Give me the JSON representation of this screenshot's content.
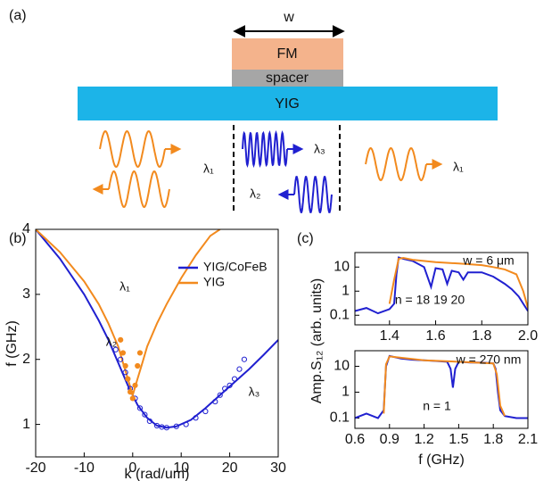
{
  "diagram": {
    "label": "(a)",
    "width_label": "w",
    "layers": [
      "FM",
      "spacer",
      "YIG"
    ],
    "wavelength_labels": [
      "λ₁",
      "λ₃",
      "λ₂",
      "λ₁"
    ]
  },
  "chart_data": [
    {
      "type": "line",
      "label": "(b)",
      "xlabel": "k (rad/um)",
      "ylabel": "f (GHz)",
      "xlim": [
        -20,
        30
      ],
      "ylim": [
        0.5,
        4
      ],
      "xticks": [
        -20,
        -10,
        0,
        10,
        20,
        30
      ],
      "yticks": [
        1,
        2,
        3,
        4
      ],
      "legend": "right",
      "annotations": [
        "λ₁",
        "λ₂",
        "λ₃"
      ],
      "series": [
        {
          "name": "YIG/CoFeB",
          "color": "#2020d0",
          "x": [
            -20,
            -15,
            -10,
            -7,
            -5,
            -3,
            -1,
            0,
            1,
            3,
            5,
            7,
            9,
            12,
            15,
            18,
            21,
            24,
            27,
            30
          ],
          "values": [
            4.0,
            3.55,
            3.0,
            2.6,
            2.3,
            1.95,
            1.6,
            1.45,
            1.3,
            1.1,
            0.98,
            0.95,
            0.97,
            1.07,
            1.25,
            1.45,
            1.65,
            1.85,
            2.07,
            2.3
          ]
        },
        {
          "name": "YIG",
          "color": "#f28a1e",
          "x": [
            -20,
            -15,
            -10,
            -7,
            -5,
            -3,
            -2,
            -1,
            0,
            1,
            2,
            3,
            5,
            7,
            10,
            13,
            16,
            18
          ],
          "values": [
            4.0,
            3.65,
            3.2,
            2.85,
            2.55,
            2.2,
            1.95,
            1.7,
            1.45,
            1.7,
            1.95,
            2.2,
            2.55,
            2.85,
            3.25,
            3.6,
            3.9,
            4.0
          ]
        },
        {
          "color": "#2020d0",
          "mode": "markers",
          "marker": "open",
          "x": [
            -3.5,
            -2.5,
            -1.5,
            -0.5,
            0.5,
            1.5,
            2.5,
            3.5,
            5,
            6,
            7,
            9,
            11,
            13,
            15,
            17,
            18,
            19,
            20,
            21,
            22,
            23
          ],
          "values": [
            2.15,
            2.0,
            1.8,
            1.55,
            1.4,
            1.25,
            1.15,
            1.05,
            0.98,
            0.96,
            0.95,
            0.97,
            1.0,
            1.1,
            1.2,
            1.35,
            1.45,
            1.55,
            1.6,
            1.7,
            1.85,
            2.0
          ]
        },
        {
          "color": "#f28a1e",
          "mode": "markers",
          "marker": "filled",
          "x": [
            -2.5,
            -2,
            -1.5,
            -1,
            -0.5,
            0,
            0.5,
            1,
            1.5
          ],
          "values": [
            2.3,
            2.1,
            1.9,
            1.7,
            1.5,
            1.4,
            1.6,
            1.9,
            2.1
          ]
        }
      ]
    },
    {
      "type": "line",
      "label": "(c)",
      "log_y": true,
      "xlim": [
        1.25,
        2.0
      ],
      "ylim": [
        0.04,
        40
      ],
      "xticks": [
        1.4,
        1.6,
        1.8,
        {
          "value": 2,
          "label": "2.0"
        }
      ],
      "yticks": [
        0.1,
        1,
        10
      ],
      "annotations": [
        "w = 6 μm",
        "n = 18 19 20"
      ],
      "series": [
        {
          "color": "#2020d0",
          "x": [
            1.25,
            1.3,
            1.35,
            1.4,
            1.42,
            1.43,
            1.44,
            1.46,
            1.5,
            1.55,
            1.58,
            1.6,
            1.63,
            1.65,
            1.67,
            1.7,
            1.72,
            1.74,
            1.8,
            1.85,
            1.9,
            1.93,
            1.96,
            1.98,
            2.0
          ],
          "values": [
            0.15,
            0.2,
            0.12,
            0.18,
            0.3,
            5,
            25,
            22,
            18,
            10,
            1.5,
            9,
            8,
            2,
            7,
            6,
            3,
            6,
            6,
            4,
            2,
            1.2,
            0.6,
            0.3,
            0.15
          ]
        },
        {
          "color": "#f28a1e",
          "x": [
            1.4,
            1.42,
            1.44,
            1.46,
            1.5,
            1.6,
            1.7,
            1.8,
            1.85,
            1.9,
            1.95,
            1.98,
            2.0
          ],
          "values": [
            0.3,
            3,
            22,
            24,
            20,
            16,
            14,
            12,
            10,
            8,
            5,
            1,
            0.2
          ]
        }
      ]
    },
    {
      "type": "line",
      "xlabel": "f (GHz)",
      "ylabel": "Amp.S₁₂ (arb. units)",
      "log_y": true,
      "xlim": [
        0.6,
        2.1
      ],
      "ylim": [
        0.04,
        40
      ],
      "xticks": [
        0.6,
        0.9,
        1.2,
        1.5,
        1.8,
        2.1
      ],
      "yticks": [
        0.1,
        1,
        10
      ],
      "annotations": [
        "w = 270 nm",
        "n = 1"
      ],
      "series": [
        {
          "color": "#2020d0",
          "x": [
            0.6,
            0.7,
            0.8,
            0.85,
            0.87,
            0.9,
            1.0,
            1.1,
            1.2,
            1.3,
            1.4,
            1.43,
            1.45,
            1.47,
            1.5,
            1.6,
            1.7,
            1.8,
            1.82,
            1.84,
            1.86,
            1.9,
            2.0,
            2.1
          ],
          "values": [
            0.1,
            0.15,
            0.1,
            0.2,
            10,
            25,
            20,
            18,
            17,
            16,
            15,
            8,
            1.5,
            8,
            15,
            14,
            14,
            13,
            8,
            1,
            0.2,
            0.12,
            0.1,
            0.1
          ]
        },
        {
          "color": "#f28a1e",
          "x": [
            0.85,
            0.87,
            0.9,
            1.2,
            1.5,
            1.8,
            1.83,
            1.86,
            1.9
          ],
          "values": [
            0.15,
            12,
            24,
            17,
            15,
            13,
            5,
            0.3,
            0.12
          ]
        }
      ]
    }
  ]
}
